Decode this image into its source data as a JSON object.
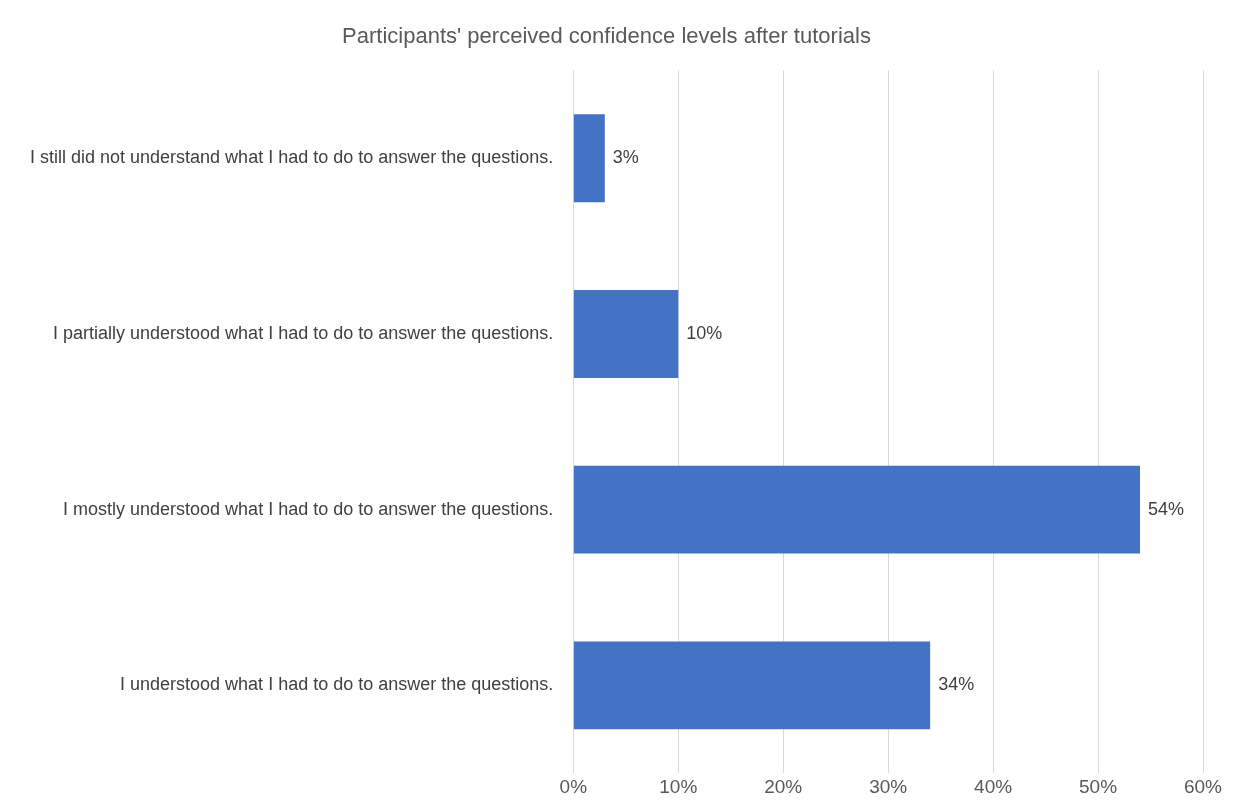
{
  "chart_data": {
    "type": "bar",
    "orientation": "horizontal",
    "title": "Participants' perceived confidence levels after tutorials",
    "categories": [
      "I still did not understand what I had to do to answer the questions.",
      "I partially understood what I had to do to answer the questions.",
      "I mostly understood what I had to do to answer the questions.",
      "I understood what I had to do to answer the questions."
    ],
    "values": [
      3,
      10,
      54,
      34
    ],
    "color": "#4472c4",
    "value_labels": [
      "3%",
      "10%",
      "54%",
      "34%"
    ],
    "xlim": [
      0,
      60
    ],
    "xticks": [
      {
        "value": 0,
        "label": "0%"
      },
      {
        "value": 10,
        "label": "10%"
      },
      {
        "value": 20,
        "label": "20%"
      },
      {
        "value": 30,
        "label": "30%"
      },
      {
        "value": 40,
        "label": "40%"
      },
      {
        "value": 50,
        "label": "50%"
      },
      {
        "value": 60,
        "label": "60%"
      }
    ],
    "grid": "x",
    "legend": false
  }
}
